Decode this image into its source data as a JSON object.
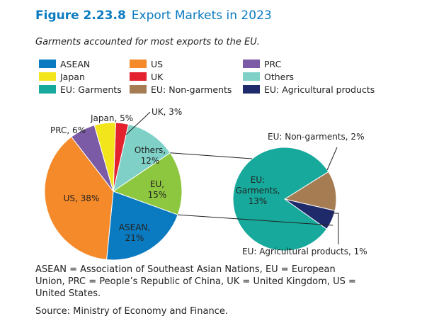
{
  "figure": "Figure 2.23.8",
  "title": "Export Markets in 2023",
  "subtitle": "Garments accounted for most exports to the EU.",
  "legend": [
    {
      "name": "ASEAN",
      "color": "#0b7bc1"
    },
    {
      "name": "US",
      "color": "#f58a2a"
    },
    {
      "name": "PRC",
      "color": "#7c5ba6"
    },
    {
      "name": "Japan",
      "color": "#f2e51b"
    },
    {
      "name": "UK",
      "color": "#e3212f"
    },
    {
      "name": "Others",
      "color": "#7fd1c7"
    },
    {
      "name": "EU: Garments",
      "color": "#17a99b"
    },
    {
      "name": "EU: Non-garments",
      "color": "#a67c52"
    },
    {
      "name": "EU: Agricultural products",
      "color": "#1f2a6b"
    }
  ],
  "chart_data": [
    {
      "type": "pie",
      "categories": [
        "UK",
        "Others",
        "EU",
        "ASEAN",
        "US",
        "PRC",
        "Japan"
      ],
      "values": [
        3,
        12,
        15,
        21,
        38,
        6,
        5
      ],
      "value_labels": [
        "UK, 3%",
        "Others, 12%",
        "EU, 15%",
        "ASEAN, 21%",
        "US, 38%",
        "PRC, 6%",
        "Japan, 5%"
      ],
      "colors": [
        "#e3212f",
        "#7fd1c7",
        "#8dc63f",
        "#0b7bc1",
        "#f58a2a",
        "#7c5ba6",
        "#f2e51b"
      ]
    },
    {
      "type": "pie",
      "categories": [
        "EU: Non-garments",
        "EU: Agricultural products",
        "EU: Garments"
      ],
      "values": [
        2,
        1,
        13
      ],
      "value_labels": [
        "EU: Non-garments, 2%",
        "EU: Agricultural products, 1%",
        "EU: Garments, 13%"
      ],
      "colors": [
        "#a67c52",
        "#1f2a6b",
        "#17a99b"
      ]
    }
  ],
  "notes": "ASEAN = Association of Southeast Asian Nations, EU = European Union, PRC = People’s Republic of China, UK = United Kingdom, US = United States.",
  "source": "Source: Ministry of Economy and Finance."
}
